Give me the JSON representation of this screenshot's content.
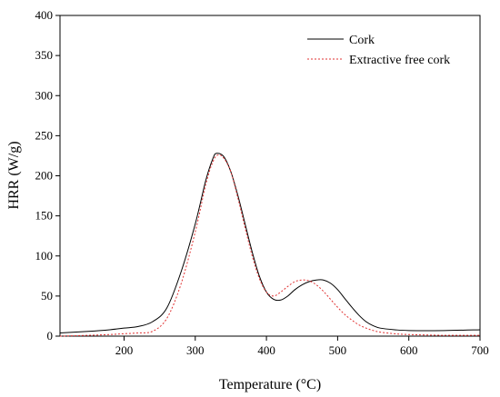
{
  "chart_data": {
    "type": "line",
    "title": "",
    "xlabel": "Temperature (°C)",
    "ylabel": "HRR (W/g)",
    "xlim": [
      110,
      700
    ],
    "ylim": [
      0,
      400
    ],
    "x_ticks": [
      200,
      300,
      400,
      500,
      600,
      700
    ],
    "y_ticks": [
      0,
      50,
      100,
      150,
      200,
      250,
      300,
      350,
      400
    ],
    "grid": false,
    "legend_position": "top-right",
    "series": [
      {
        "name": "Cork",
        "color": "#000000",
        "style": "solid",
        "points": [
          [
            110,
            4
          ],
          [
            150,
            6
          ],
          [
            180,
            8
          ],
          [
            200,
            10
          ],
          [
            220,
            12
          ],
          [
            240,
            18
          ],
          [
            260,
            35
          ],
          [
            280,
            80
          ],
          [
            300,
            140
          ],
          [
            315,
            195
          ],
          [
            325,
            222
          ],
          [
            330,
            228
          ],
          [
            340,
            224
          ],
          [
            350,
            205
          ],
          [
            360,
            175
          ],
          [
            370,
            140
          ],
          [
            380,
            105
          ],
          [
            390,
            75
          ],
          [
            400,
            55
          ],
          [
            410,
            46
          ],
          [
            420,
            45
          ],
          [
            430,
            50
          ],
          [
            440,
            58
          ],
          [
            450,
            64
          ],
          [
            460,
            68
          ],
          [
            470,
            70
          ],
          [
            480,
            70
          ],
          [
            490,
            66
          ],
          [
            500,
            58
          ],
          [
            510,
            47
          ],
          [
            520,
            36
          ],
          [
            530,
            26
          ],
          [
            540,
            18
          ],
          [
            550,
            13
          ],
          [
            560,
            10
          ],
          [
            580,
            8
          ],
          [
            600,
            7
          ],
          [
            650,
            7
          ],
          [
            700,
            8
          ]
        ]
      },
      {
        "name": "Extractive free cork",
        "color": "#e03030",
        "style": "dotted",
        "points": [
          [
            110,
            0
          ],
          [
            150,
            1
          ],
          [
            180,
            2
          ],
          [
            200,
            3
          ],
          [
            220,
            4
          ],
          [
            240,
            6
          ],
          [
            260,
            22
          ],
          [
            280,
            65
          ],
          [
            300,
            130
          ],
          [
            315,
            190
          ],
          [
            325,
            218
          ],
          [
            332,
            226
          ],
          [
            340,
            222
          ],
          [
            350,
            205
          ],
          [
            360,
            172
          ],
          [
            370,
            135
          ],
          [
            380,
            100
          ],
          [
            390,
            72
          ],
          [
            400,
            55
          ],
          [
            410,
            50
          ],
          [
            420,
            55
          ],
          [
            430,
            62
          ],
          [
            440,
            68
          ],
          [
            450,
            70
          ],
          [
            460,
            69
          ],
          [
            470,
            64
          ],
          [
            480,
            56
          ],
          [
            490,
            46
          ],
          [
            500,
            36
          ],
          [
            510,
            27
          ],
          [
            520,
            20
          ],
          [
            530,
            14
          ],
          [
            540,
            10
          ],
          [
            550,
            7
          ],
          [
            560,
            5
          ],
          [
            580,
            3
          ],
          [
            600,
            2
          ],
          [
            650,
            1
          ],
          [
            700,
            1
          ]
        ]
      }
    ]
  }
}
